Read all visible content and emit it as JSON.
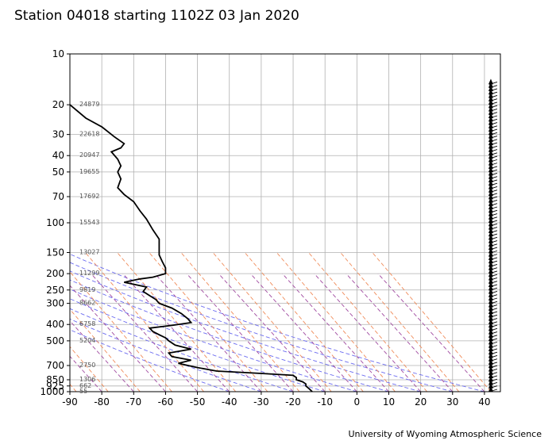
{
  "chart_data": {
    "type": "line",
    "title": "Station 04018 starting 1102Z 03 Jan 2020",
    "credit": "University of Wyoming Atmospheric Science",
    "x_axis": {
      "range": [
        -90,
        45
      ],
      "ticks": [
        -90,
        -80,
        -70,
        -60,
        -50,
        -40,
        -30,
        -20,
        -10,
        0,
        10,
        20,
        30,
        40
      ]
    },
    "y_axis": {
      "scale": "log",
      "inverted": true,
      "range": [
        1000,
        10
      ],
      "ticks": [
        10,
        20,
        30,
        40,
        50,
        70,
        100,
        150,
        200,
        250,
        300,
        400,
        500,
        700,
        850,
        925,
        1000
      ]
    },
    "grid": true,
    "height_labels": [
      {
        "p": 20,
        "label": "24879"
      },
      {
        "p": 30,
        "label": "22618"
      },
      {
        "p": 40,
        "label": "20947"
      },
      {
        "p": 50,
        "label": "19655"
      },
      {
        "p": 70,
        "label": "17692"
      },
      {
        "p": 100,
        "label": "15543"
      },
      {
        "p": 150,
        "label": "13027"
      },
      {
        "p": 200,
        "label": "11299"
      },
      {
        "p": 250,
        "label": "9819"
      },
      {
        "p": 300,
        "label": "8662"
      },
      {
        "p": 400,
        "label": "6758"
      },
      {
        "p": 500,
        "label": "5204"
      },
      {
        "p": 700,
        "label": "2750"
      },
      {
        "p": 850,
        "label": "1306"
      },
      {
        "p": 925,
        "label": "662"
      },
      {
        "p": 1000,
        "label": "55"
      }
    ],
    "series": [
      {
        "color": "#000000",
        "points": [
          [
            -90,
            20
          ],
          [
            -85,
            24
          ],
          [
            -80,
            27
          ],
          [
            -76,
            31
          ],
          [
            -73,
            34
          ],
          [
            -74,
            36
          ],
          [
            -77,
            38
          ],
          [
            -75,
            42
          ],
          [
            -74,
            46
          ],
          [
            -75,
            50
          ],
          [
            -74,
            55
          ],
          [
            -75,
            62
          ],
          [
            -73,
            68
          ],
          [
            -70,
            75
          ],
          [
            -68,
            85
          ],
          [
            -66,
            95
          ],
          [
            -64,
            110
          ],
          [
            -62,
            125
          ],
          [
            -62,
            140
          ],
          [
            -62,
            155
          ],
          [
            -61,
            170
          ],
          [
            -60,
            185
          ],
          [
            -60,
            200
          ],
          [
            -64,
            210
          ],
          [
            -68,
            215
          ],
          [
            -73,
            225
          ],
          [
            -66,
            240
          ],
          [
            -67,
            255
          ],
          [
            -65,
            270
          ],
          [
            -63,
            285
          ],
          [
            -62,
            300
          ],
          [
            -58,
            320
          ],
          [
            -55,
            345
          ],
          [
            -53,
            370
          ],
          [
            -52,
            390
          ],
          [
            -58,
            405
          ],
          [
            -65,
            420
          ],
          [
            -64,
            440
          ],
          [
            -62,
            460
          ],
          [
            -60,
            480
          ],
          [
            -59,
            500
          ],
          [
            -57,
            530
          ],
          [
            -52,
            560
          ],
          [
            -59,
            590
          ],
          [
            -58,
            620
          ],
          [
            -52,
            650
          ],
          [
            -56,
            680
          ],
          [
            -50,
            720
          ],
          [
            -44,
            755
          ],
          [
            -30,
            780
          ],
          [
            -20,
            800
          ],
          [
            -19,
            825
          ],
          [
            -19,
            850
          ],
          [
            -17,
            875
          ],
          [
            -16,
            900
          ],
          [
            -16,
            925
          ],
          [
            -15,
            960
          ],
          [
            -14,
            1000
          ]
        ]
      }
    ],
    "dry_adiabats": [
      -40,
      -30,
      -20,
      -10,
      0,
      10,
      20,
      30,
      40
    ],
    "isotherm_like": [
      -90,
      -80,
      -70,
      -60,
      -50,
      -40,
      -30,
      -20,
      -10,
      0,
      10,
      20,
      30,
      40
    ]
  }
}
